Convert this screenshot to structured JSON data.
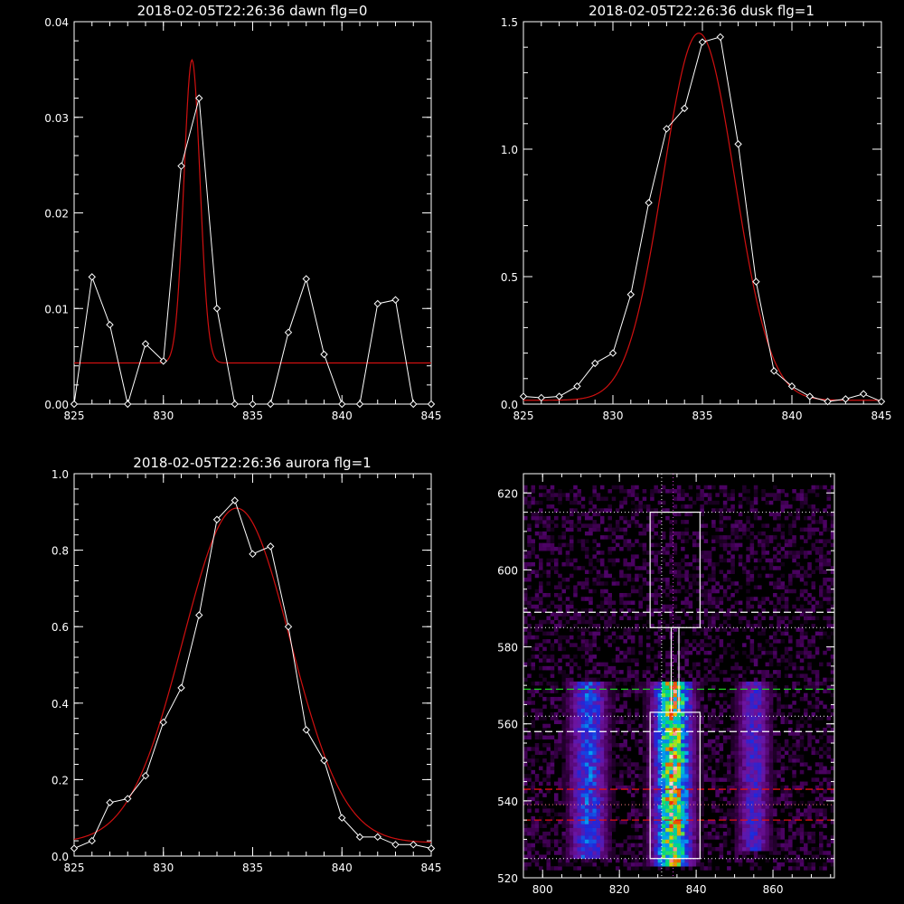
{
  "chart_data": [
    {
      "type": "line",
      "title": "2018-02-05T22:26:36 dawn flg=0",
      "xlim": [
        825,
        845
      ],
      "ylim": [
        0,
        0.04
      ],
      "xticks": [
        825,
        830,
        835,
        840,
        845
      ],
      "yticks": [
        0.0,
        0.01,
        0.02,
        0.03,
        0.04
      ],
      "ytick_labels": [
        "0.00",
        "0.01",
        "0.02",
        "0.03",
        "0.04"
      ],
      "series": [
        {
          "color": "#ffffff",
          "markers": "diamond",
          "x": [
            825,
            826,
            827,
            828,
            829,
            830,
            831,
            832,
            833,
            834,
            835,
            836,
            837,
            838,
            839,
            840,
            841,
            842,
            843,
            844,
            845
          ],
          "y": [
            0.0,
            0.0133,
            0.0083,
            0.0,
            0.0063,
            0.0045,
            0.0249,
            0.032,
            0.01,
            0.0,
            0.0,
            0.0,
            0.0075,
            0.0131,
            0.0052,
            0.0,
            0.0,
            0.0105,
            0.0109,
            0.0,
            0.0
          ]
        }
      ],
      "fit": {
        "color": "#d01010",
        "baseline": 0.0043,
        "amplitude": 0.0317,
        "center": 831.6,
        "sigma": 0.45,
        "power": 2
      }
    },
    {
      "type": "line",
      "title": "2018-02-05T22:26:36 dusk flg=1",
      "xlim": [
        825,
        845
      ],
      "ylim": [
        0,
        1.5
      ],
      "xticks": [
        825,
        830,
        835,
        840,
        845
      ],
      "yticks": [
        0.0,
        0.5,
        1.0,
        1.5
      ],
      "ytick_labels": [
        "0.0",
        "0.5",
        "1.0",
        "1.5"
      ],
      "series": [
        {
          "color": "#ffffff",
          "markers": "diamond",
          "x": [
            825,
            826,
            827,
            828,
            829,
            830,
            831,
            832,
            833,
            834,
            835,
            836,
            837,
            838,
            839,
            840,
            841,
            842,
            843,
            844,
            845
          ],
          "y": [
            0.03,
            0.025,
            0.03,
            0.07,
            0.16,
            0.2,
            0.43,
            0.79,
            1.08,
            1.16,
            1.42,
            1.44,
            1.02,
            0.48,
            0.13,
            0.07,
            0.03,
            0.01,
            0.02,
            0.04,
            0.01
          ]
        }
      ],
      "fit": {
        "color": "#d01010",
        "baseline": 0.015,
        "amplitude": 1.44,
        "center": 834.8,
        "sigma": 2.0,
        "power": 2
      }
    },
    {
      "type": "line",
      "title": "2018-02-05T22:26:36 aurora flg=1",
      "xlim": [
        825,
        845
      ],
      "ylim": [
        0,
        1.0
      ],
      "xticks": [
        825,
        830,
        835,
        840,
        845
      ],
      "yticks": [
        0.0,
        0.2,
        0.4,
        0.6,
        0.8,
        1.0
      ],
      "ytick_labels": [
        "0.0",
        "0.2",
        "0.4",
        "0.6",
        "0.8",
        "1.0"
      ],
      "series": [
        {
          "color": "#ffffff",
          "markers": "diamond",
          "x": [
            825,
            826,
            827,
            828,
            829,
            830,
            831,
            832,
            833,
            834,
            835,
            836,
            837,
            838,
            839,
            840,
            841,
            842,
            843,
            844,
            845
          ],
          "y": [
            0.02,
            0.04,
            0.14,
            0.15,
            0.21,
            0.35,
            0.44,
            0.63,
            0.88,
            0.93,
            0.79,
            0.81,
            0.6,
            0.33,
            0.25,
            0.1,
            0.05,
            0.05,
            0.03,
            0.03,
            0.02
          ]
        }
      ],
      "fit": {
        "color": "#d01010",
        "baseline": 0.035,
        "amplitude": 0.875,
        "center": 834.1,
        "sigma": 3.0,
        "power": 2
      }
    },
    {
      "type": "heatmap",
      "xlim": [
        795,
        876
      ],
      "ylim": [
        520,
        625
      ],
      "xticks": [
        800,
        820,
        840,
        860
      ],
      "yticks": [
        520,
        540,
        560,
        580,
        600,
        620
      ],
      "bands": [
        {
          "center": 812,
          "width": 3.2,
          "y_range": [
            525,
            570
          ],
          "peak": 0.55
        },
        {
          "center": 834,
          "width": 3.3,
          "y_range": [
            523,
            570
          ],
          "peak": 1.0
        },
        {
          "center": 855,
          "width": 2.8,
          "y_range": [
            527,
            570
          ],
          "peak": 0.42
        }
      ],
      "boxes": [
        {
          "x": [
            828,
            841
          ],
          "y": [
            585,
            615
          ],
          "color": "#ffffff"
        },
        {
          "x": [
            828,
            841
          ],
          "y": [
            525,
            563
          ],
          "color": "#ffffff"
        }
      ],
      "connector_x": [
        833.5,
        835.5
      ],
      "dotted_vlines": [
        {
          "x": 831,
          "color": "#ffffff"
        },
        {
          "x": 834,
          "color": "#e040e0"
        }
      ],
      "dotted_hlines": [
        {
          "y": 615,
          "color": "#ffffff"
        },
        {
          "y": 585,
          "color": "#ffffff"
        },
        {
          "y": 562,
          "color": "#ffffff"
        },
        {
          "y": 539,
          "color": "#ff8080"
        },
        {
          "y": 525,
          "color": "#ffffff"
        }
      ],
      "dashed_hlines": [
        {
          "y": 589,
          "color": "#ffffff"
        },
        {
          "y": 569,
          "color": "#20d020"
        },
        {
          "y": 558,
          "color": "#ffffff"
        },
        {
          "y": 543,
          "color": "#e01010"
        },
        {
          "y": 535,
          "color": "#e01010"
        }
      ]
    }
  ]
}
